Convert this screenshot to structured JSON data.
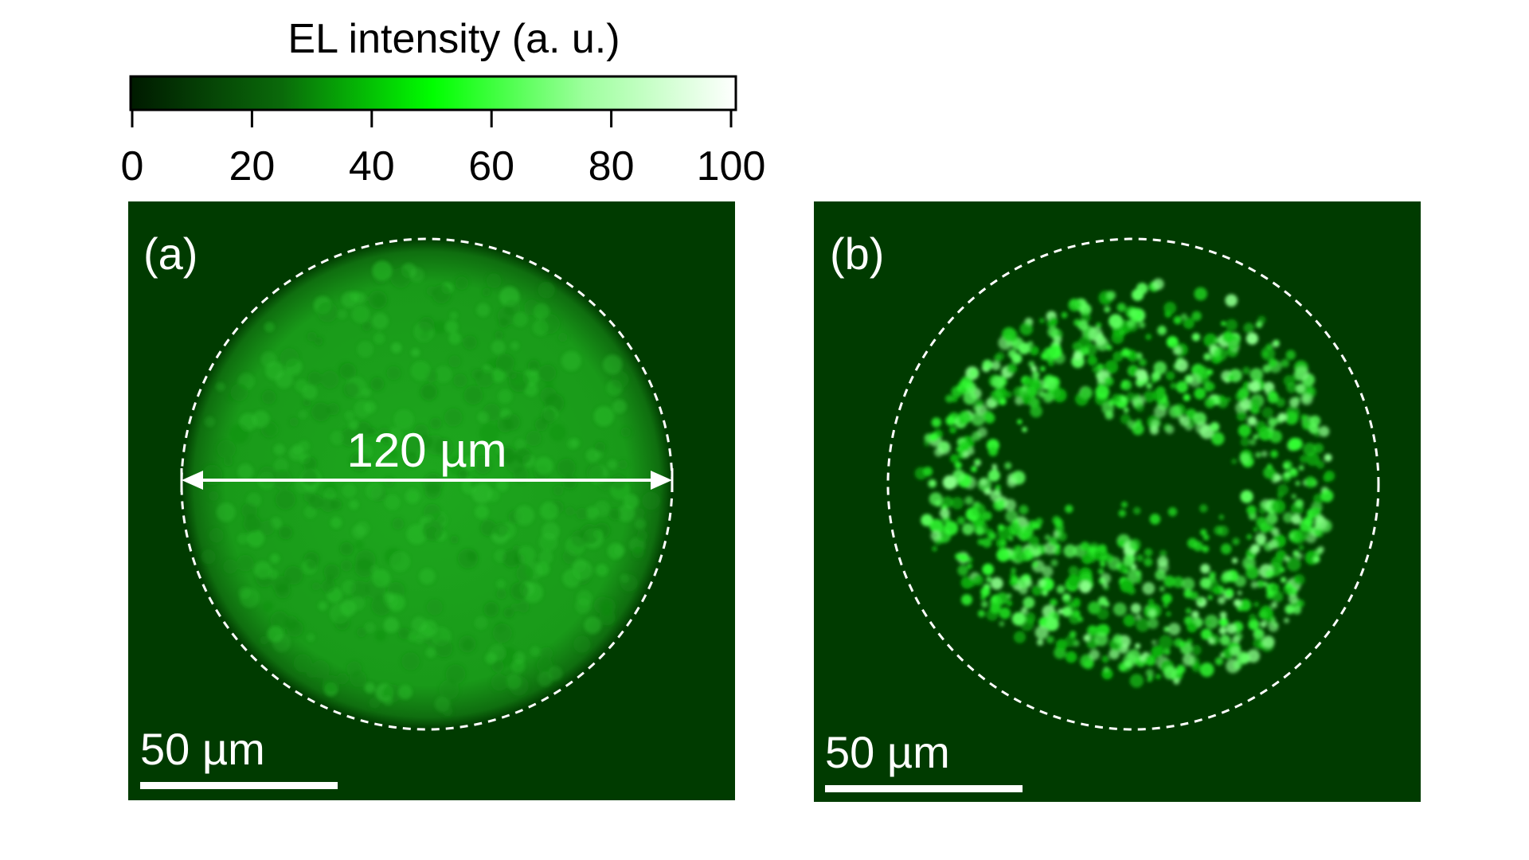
{
  "colorbar": {
    "title": "EL intensity (a. u.)",
    "ticks": [
      "0",
      "20",
      "40",
      "60",
      "80",
      "100"
    ],
    "range": [
      0,
      100
    ],
    "colors": [
      "#001a00",
      "#0a6a0a",
      "#00ff00",
      "#bfffbf",
      "#ffffff"
    ]
  },
  "panels": [
    {
      "label": "(a)",
      "scale_bar_text": "50 µm",
      "diameter_text": "120 µm",
      "emission": "uniform"
    },
    {
      "label": "(b)",
      "scale_bar_text": "50 µm",
      "emission": "ring of bright spots"
    }
  ],
  "colors": {
    "background": "#003b00",
    "emission_a": "#17a617",
    "emission_b": "#33ff33"
  }
}
